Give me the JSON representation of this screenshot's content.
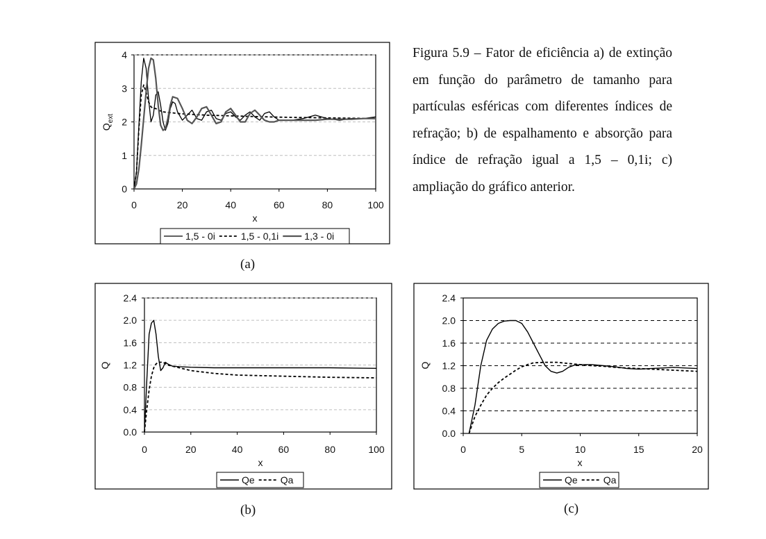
{
  "figure": {
    "caption": "Figura 5.9 – Fator de eficiência a) de extinção em função do parâmetro de tamanho para partículas esféricas com diferentes índices de refração; b) de espalhamento e absorção para índice de refração igual a 1,5 – 0,1i; c) ampliação do gráfico anterior.",
    "label_a": "(a)",
    "label_b": "(b)",
    "label_c": "(c)"
  },
  "chart_data": [
    {
      "id": "a",
      "type": "line",
      "xlabel": "x",
      "ylabel": "Q",
      "ylabel_sub": "ext",
      "xlim": [
        0,
        100
      ],
      "ylim": [
        0,
        4
      ],
      "xticks": [
        "0",
        "20",
        "40",
        "60",
        "80",
        "100"
      ],
      "xtick_values": [
        0,
        20,
        40,
        60,
        80,
        100
      ],
      "yticks": [
        "0",
        "1",
        "2",
        "3",
        "4"
      ],
      "ytick_values": [
        0,
        1,
        2,
        3,
        4
      ],
      "grid": "horizontal dashed",
      "legend_position": "bottom",
      "series": [
        {
          "name": "1,5 - 0i",
          "style": "solid",
          "width": 1.3,
          "x": [
            0,
            1,
            2,
            3,
            4,
            5,
            6,
            7,
            8,
            9,
            10,
            11,
            12,
            13,
            14,
            15,
            16,
            17,
            18,
            20,
            22,
            24,
            26,
            28,
            30,
            32,
            34,
            36,
            38,
            40,
            42,
            44,
            46,
            48,
            50,
            52,
            54,
            56,
            58,
            60,
            65,
            70,
            75,
            80,
            85,
            90,
            95,
            100
          ],
          "y": [
            0,
            0.5,
            1.9,
            3.2,
            3.9,
            3.6,
            2.7,
            2.0,
            2.2,
            2.8,
            2.9,
            2.5,
            2.0,
            1.75,
            1.95,
            2.4,
            2.6,
            2.55,
            2.3,
            2.05,
            2.2,
            2.35,
            2.1,
            2.05,
            2.3,
            2.35,
            2.1,
            2.05,
            2.25,
            2.3,
            2.15,
            2.05,
            2.2,
            2.3,
            2.15,
            2.05,
            2.25,
            2.3,
            2.15,
            2.05,
            2.05,
            2.1,
            2.2,
            2.1,
            2.05,
            2.1,
            2.1,
            2.15
          ]
        },
        {
          "name": "1,5 - 0,1i",
          "style": "dashed",
          "width": 1.8,
          "x": [
            0,
            1,
            2,
            3,
            4,
            5,
            6,
            7,
            8,
            9,
            10,
            12,
            14,
            16,
            18,
            20,
            25,
            30,
            40,
            50,
            60,
            70,
            80,
            90,
            100
          ],
          "y": [
            0,
            0.5,
            1.8,
            2.8,
            3.1,
            2.9,
            2.6,
            2.45,
            2.4,
            2.4,
            2.35,
            2.3,
            2.28,
            2.27,
            2.25,
            2.24,
            2.22,
            2.2,
            2.18,
            2.16,
            2.14,
            2.13,
            2.12,
            2.11,
            2.1
          ]
        },
        {
          "name": "1,3 - 0i",
          "style": "solid",
          "width": 2.2,
          "x": [
            0,
            1,
            2,
            3,
            4,
            5,
            6,
            7,
            8,
            9,
            10,
            11,
            12,
            13,
            14,
            15,
            16,
            18,
            20,
            22,
            24,
            26,
            28,
            30,
            32,
            34,
            36,
            38,
            40,
            42,
            44,
            46,
            48,
            50,
            52,
            54,
            56,
            58,
            60,
            65,
            70,
            75,
            80,
            85,
            90,
            95,
            100
          ],
          "y": [
            0,
            0.15,
            0.6,
            1.3,
            2.1,
            2.9,
            3.6,
            3.9,
            3.85,
            3.3,
            2.5,
            1.9,
            1.75,
            1.8,
            2.1,
            2.5,
            2.75,
            2.7,
            2.4,
            2.05,
            1.95,
            2.15,
            2.4,
            2.45,
            2.2,
            1.95,
            2.0,
            2.3,
            2.4,
            2.2,
            2.0,
            2.0,
            2.25,
            2.35,
            2.2,
            2.05,
            2.0,
            2.0,
            2.05,
            2.05,
            2.05,
            2.05,
            2.08,
            2.08,
            2.08,
            2.1,
            2.1
          ]
        }
      ]
    },
    {
      "id": "b",
      "type": "line",
      "xlabel": "x",
      "ylabel": "Q",
      "xlim": [
        0,
        100
      ],
      "ylim": [
        0,
        2.4
      ],
      "xticks": [
        "0",
        "20",
        "40",
        "60",
        "80",
        "100"
      ],
      "xtick_values": [
        0,
        20,
        40,
        60,
        80,
        100
      ],
      "yticks": [
        "0.0",
        "0.4",
        "0.8",
        "1.2",
        "1.6",
        "2.0",
        "2.4"
      ],
      "ytick_values": [
        0,
        0.4,
        0.8,
        1.2,
        1.6,
        2.0,
        2.4
      ],
      "grid": "horizontal dashed",
      "legend_position": "bottom",
      "series": [
        {
          "name": "Qe",
          "style": "solid",
          "width": 1.4,
          "x": [
            0,
            1,
            2,
            3,
            4,
            5,
            6,
            7,
            8,
            9,
            10,
            12,
            15,
            20,
            30,
            40,
            60,
            80,
            100
          ],
          "y": [
            0,
            0.9,
            1.75,
            1.95,
            2.0,
            1.75,
            1.35,
            1.1,
            1.15,
            1.25,
            1.22,
            1.18,
            1.17,
            1.16,
            1.15,
            1.15,
            1.15,
            1.15,
            1.14
          ]
        },
        {
          "name": "Qa",
          "style": "dashed",
          "width": 1.8,
          "x": [
            0,
            1,
            2,
            3,
            4,
            5,
            6,
            8,
            10,
            15,
            20,
            30,
            40,
            60,
            80,
            100
          ],
          "y": [
            0,
            0.4,
            0.75,
            1.0,
            1.15,
            1.22,
            1.25,
            1.25,
            1.2,
            1.15,
            1.1,
            1.05,
            1.02,
            1.0,
            0.98,
            0.97
          ]
        }
      ]
    },
    {
      "id": "c",
      "type": "line",
      "xlabel": "x",
      "ylabel": "Q",
      "xlim": [
        0,
        20
      ],
      "ylim": [
        0,
        2.4
      ],
      "xticks": [
        "0",
        "5",
        "10",
        "15",
        "20"
      ],
      "xtick_values": [
        0,
        5,
        10,
        15,
        20
      ],
      "yticks": [
        "0.0",
        "0.4",
        "0.8",
        "1.2",
        "1.6",
        "2.0",
        "2.4"
      ],
      "ytick_values": [
        0,
        0.4,
        0.8,
        1.2,
        1.6,
        2.0,
        2.4
      ],
      "grid": "horizontal dashed",
      "legend_position": "bottom",
      "series": [
        {
          "name": "Qe",
          "style": "solid",
          "width": 1.4,
          "x": [
            0.5,
            1,
            1.5,
            2,
            2.5,
            3,
            3.5,
            4,
            4.5,
            5,
            5.5,
            6,
            6.5,
            7,
            7.5,
            8,
            8.5,
            9,
            9.5,
            10,
            11,
            12,
            13,
            14,
            15,
            16,
            17,
            18,
            19,
            20
          ],
          "y": [
            0,
            0.5,
            1.2,
            1.65,
            1.85,
            1.95,
            1.99,
            2.0,
            2.0,
            1.95,
            1.8,
            1.6,
            1.4,
            1.2,
            1.1,
            1.07,
            1.1,
            1.17,
            1.21,
            1.22,
            1.22,
            1.2,
            1.18,
            1.15,
            1.14,
            1.15,
            1.16,
            1.17,
            1.16,
            1.15
          ]
        },
        {
          "name": "Qa",
          "style": "dashed",
          "width": 1.8,
          "x": [
            0.5,
            1,
            1.5,
            2,
            2.5,
            3,
            3.5,
            4,
            4.5,
            5,
            5.5,
            6,
            7,
            8,
            9,
            10,
            11,
            12,
            13,
            14,
            15,
            16,
            17,
            18,
            19,
            20
          ],
          "y": [
            0,
            0.3,
            0.5,
            0.68,
            0.8,
            0.9,
            0.98,
            1.05,
            1.12,
            1.18,
            1.22,
            1.25,
            1.26,
            1.26,
            1.24,
            1.22,
            1.2,
            1.19,
            1.17,
            1.16,
            1.15,
            1.14,
            1.13,
            1.12,
            1.11,
            1.1
          ]
        }
      ]
    }
  ]
}
